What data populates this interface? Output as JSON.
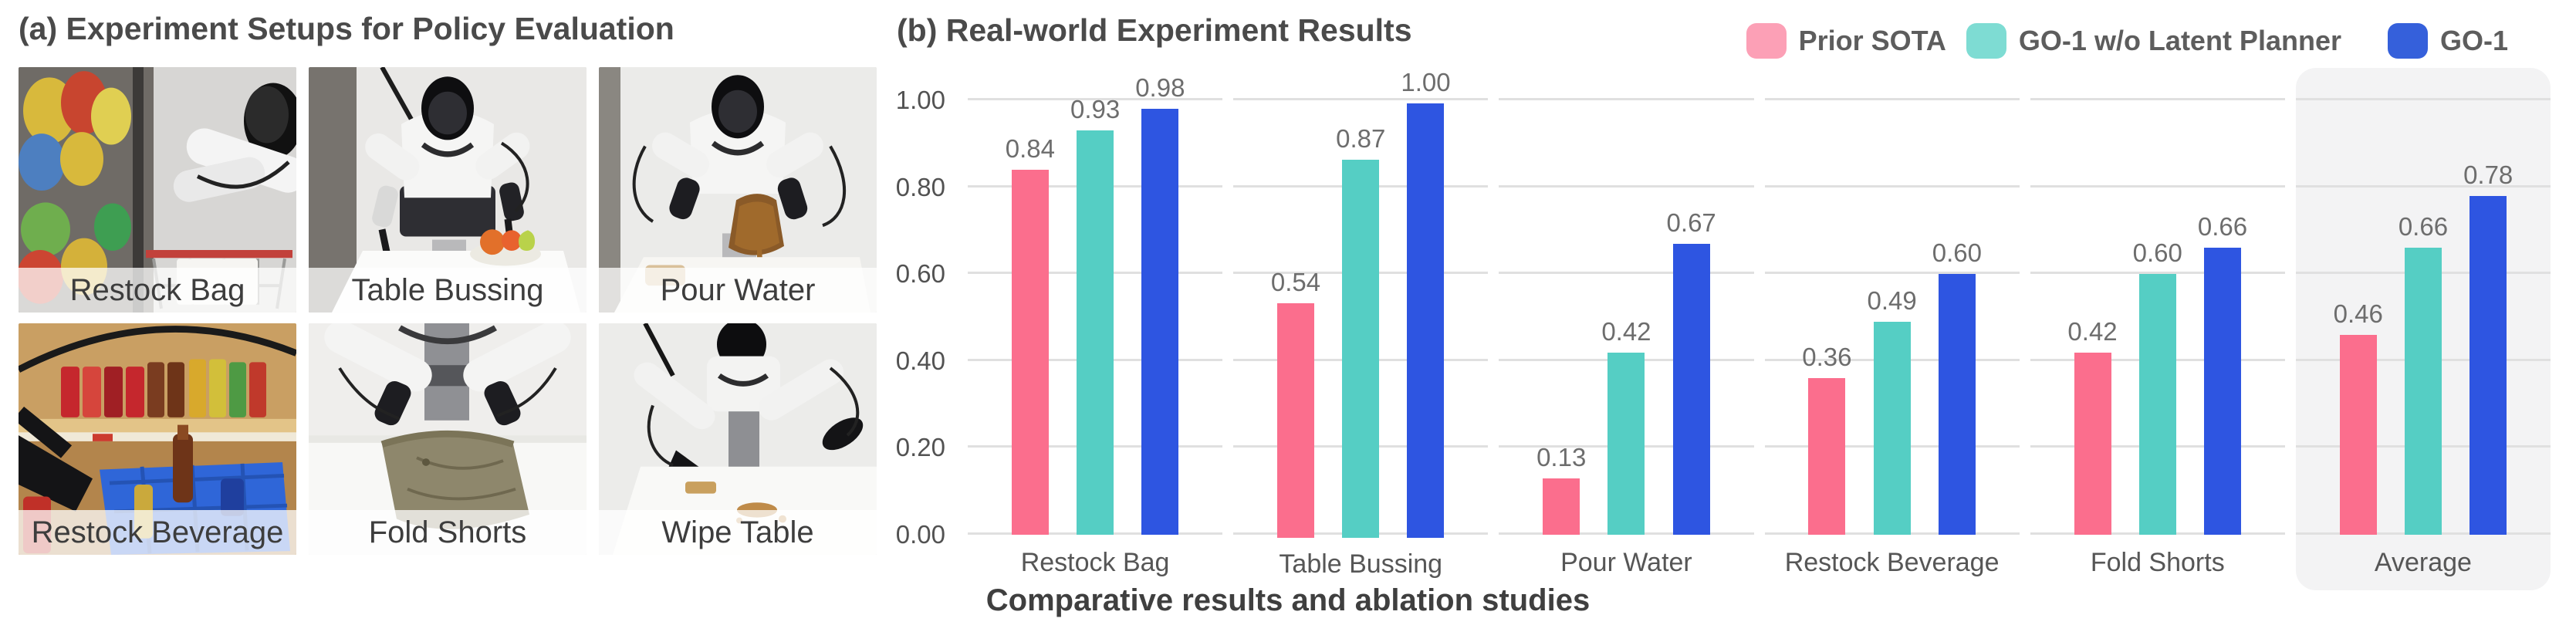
{
  "figure": {
    "caption": "Comparative results and ablation studies"
  },
  "panel_a": {
    "title": "(a) Experiment Setups for Policy Evaluation",
    "photos": [
      {
        "label": "Restock Bag"
      },
      {
        "label": "Table Bussing"
      },
      {
        "label": "Pour Water"
      },
      {
        "label": "Restock Beverage"
      },
      {
        "label": "Fold Shorts"
      },
      {
        "label": "Wipe Table"
      }
    ]
  },
  "panel_b": {
    "title": "(b) Real-world Experiment Results",
    "legend": [
      {
        "label": "Prior SOTA",
        "swatch_color": "#FCA0B6"
      },
      {
        "label": "GO-1 w/o Latent Planner",
        "swatch_color": "#7EDCD3"
      },
      {
        "label": "GO-1",
        "swatch_color": "#3560DB"
      }
    ]
  },
  "chart_data": {
    "type": "bar",
    "title": "(b) Real-world Experiment Results",
    "categories": [
      "Restock Bag",
      "Table Bussing",
      "Pour Water",
      "Restock Beverage",
      "Fold Shorts",
      "Average"
    ],
    "series": [
      {
        "name": "Prior SOTA",
        "color": "#FB6E8D",
        "values": [
          0.84,
          0.54,
          0.13,
          0.36,
          0.42,
          0.46
        ]
      },
      {
        "name": "GO-1 w/o Latent Planner",
        "color": "#55CEC4",
        "values": [
          0.93,
          0.87,
          0.42,
          0.49,
          0.6,
          0.66
        ]
      },
      {
        "name": "GO-1",
        "color": "#2E55E1",
        "values": [
          0.98,
          1.0,
          0.67,
          0.6,
          0.66,
          0.78
        ]
      }
    ],
    "ylim": [
      0,
      1.0
    ],
    "yticks": [
      0.0,
      0.2,
      0.4,
      0.6,
      0.8,
      1.0
    ],
    "grid": true,
    "legend_position": "top-right",
    "highlight_category": "Average",
    "value_labels": true,
    "xlabel": "",
    "ylabel": ""
  }
}
